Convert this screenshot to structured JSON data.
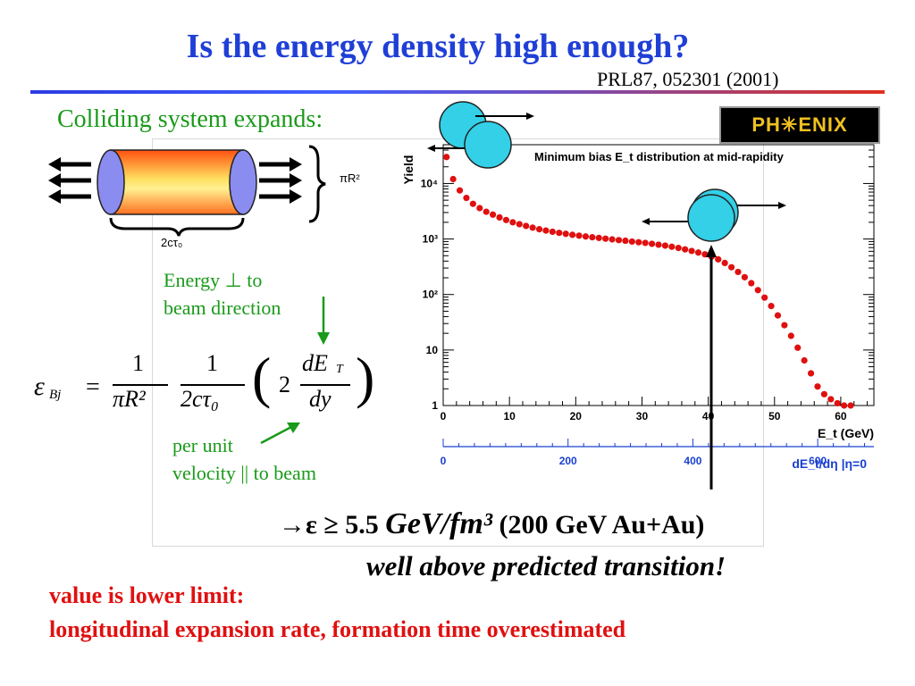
{
  "slide": {
    "title": "Is the energy density high enough?",
    "reference": "PRL87, 052301 (2001)",
    "colliding": "Colliding system expands:",
    "pi_r2": "πR²",
    "two_c_tau": "2cτ₀",
    "energy_line1": "Energy ⊥ to",
    "energy_line2": "beam direction",
    "perunit_line1": "per unit",
    "perunit_line2": "velocity || to beam",
    "result_arrow": "→ε ≥ ",
    "result_value": "5.5 ",
    "result_unit": "GeV/fm³",
    "result_system": " (200 GeV Au+Au)",
    "well_above": "well above predicted transition!",
    "lower_limit_1": "value is lower limit:",
    "lower_limit_2": "longitudinal expansion rate, formation time overestimated",
    "logo": "PH✳ENIX"
  },
  "equation": {
    "lhs": "ε",
    "lhs_sub": "Bj",
    "frac1_num": "1",
    "frac1_den": "πR²",
    "frac2_num": "1",
    "frac2_den": "2cτ₀",
    "factor": "2",
    "deriv_num": "dE",
    "deriv_num_sub": "T",
    "deriv_den": "dy"
  },
  "chart_data": {
    "type": "scatter",
    "title": "Minimum bias E_t distribution at mid-rapidity",
    "ylabel": "Yield",
    "xlabel": "E_t (GeV)",
    "xlabel2": "dE_t/dη |η=0",
    "y_scale": "log",
    "xlim": [
      0,
      65
    ],
    "ylim": [
      1,
      50000
    ],
    "x_ticks": [
      "0",
      "10",
      "20",
      "30",
      "40",
      "50",
      "60"
    ],
    "x2_ticks": [
      "0",
      "200",
      "400",
      "600"
    ],
    "y_ticks": [
      "1",
      "10",
      "10²",
      "10³",
      "10⁴"
    ],
    "marker_color": "#e01010",
    "x": [
      0.5,
      1.5,
      2.5,
      3.5,
      4.5,
      5.5,
      6.5,
      7.5,
      8.5,
      9.5,
      10.5,
      11.5,
      12.5,
      13.5,
      14.5,
      15.5,
      16.5,
      17.5,
      18.5,
      19.5,
      20.5,
      21.5,
      22.5,
      23.5,
      24.5,
      25.5,
      26.5,
      27.5,
      28.5,
      29.5,
      30.5,
      31.5,
      32.5,
      33.5,
      34.5,
      35.5,
      36.5,
      37.5,
      38.5,
      39.5,
      40.5,
      41.5,
      42.5,
      43.5,
      44.5,
      45.5,
      46.5,
      47.5,
      48.5,
      49.5,
      50.5,
      51.5,
      52.5,
      53.5,
      54.5,
      55.5,
      56.5,
      57.5,
      58.5,
      59.5,
      60.5,
      61.5
    ],
    "y": [
      30000,
      12000,
      7500,
      5500,
      4300,
      3600,
      3100,
      2750,
      2450,
      2200,
      2000,
      1850,
      1720,
      1600,
      1500,
      1420,
      1350,
      1290,
      1240,
      1190,
      1150,
      1110,
      1075,
      1045,
      1015,
      985,
      955,
      930,
      900,
      875,
      850,
      820,
      790,
      760,
      725,
      690,
      650,
      610,
      570,
      530,
      480,
      430,
      370,
      310,
      255,
      205,
      160,
      120,
      88,
      62,
      42,
      28,
      18,
      11,
      6.5,
      3.8,
      2.2,
      1.6,
      1.3,
      1.1,
      1,
      1
    ]
  },
  "colors": {
    "title": "#1f3fd6",
    "green_text": "#1a9a1a",
    "red_text": "#e01010",
    "nucleus": "#33d0e8",
    "axis_blue": "#1a40d0"
  }
}
